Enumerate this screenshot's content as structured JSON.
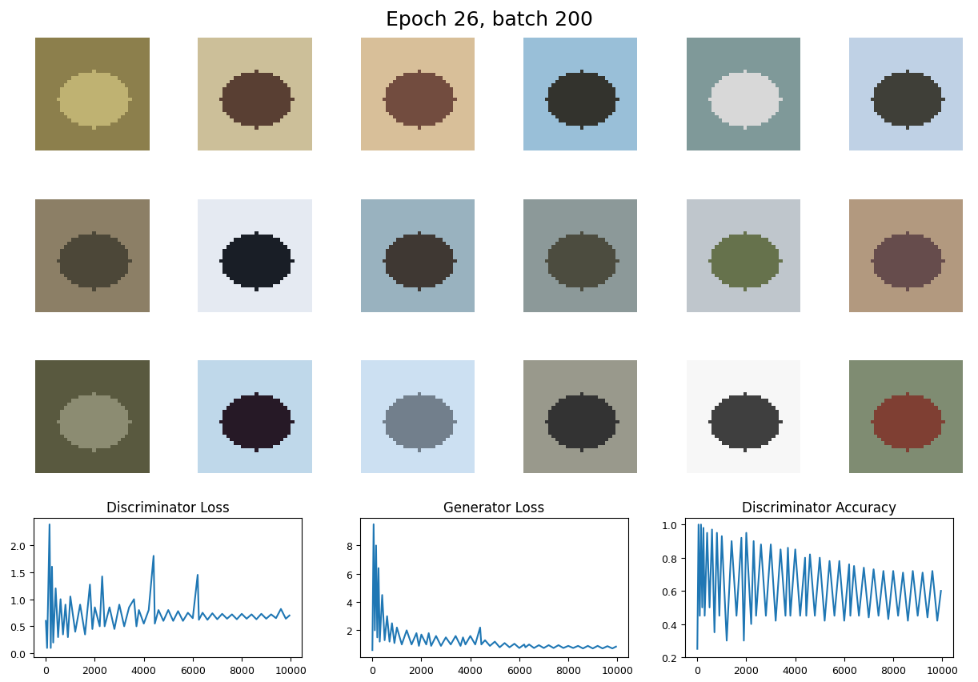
{
  "title": "Epoch 26, batch 200",
  "chart_data": [
    {
      "type": "line",
      "title": "Discriminator Loss",
      "color": "#1f77b4",
      "x": [
        0,
        50,
        100,
        150,
        200,
        250,
        300,
        400,
        500,
        600,
        700,
        800,
        900,
        1000,
        1200,
        1400,
        1600,
        1800,
        1900,
        2000,
        2200,
        2300,
        2400,
        2600,
        2800,
        3000,
        3200,
        3400,
        3600,
        3700,
        3800,
        4000,
        4200,
        4400,
        4450,
        4600,
        4800,
        5000,
        5200,
        5400,
        5600,
        5800,
        6000,
        6200,
        6250,
        6400,
        6600,
        6800,
        7000,
        7200,
        7400,
        7600,
        7800,
        8000,
        8200,
        8400,
        8600,
        8800,
        9000,
        9200,
        9400,
        9600,
        9800,
        9950
      ],
      "values": [
        0.6,
        0.1,
        1.2,
        2.38,
        0.1,
        1.6,
        0.2,
        1.2,
        0.3,
        1.0,
        0.35,
        0.9,
        0.3,
        1.05,
        0.4,
        0.9,
        0.35,
        1.27,
        0.45,
        0.85,
        0.5,
        1.42,
        0.5,
        0.85,
        0.45,
        0.9,
        0.5,
        0.85,
        1.0,
        0.5,
        0.8,
        0.55,
        0.8,
        1.8,
        0.55,
        0.8,
        0.6,
        0.8,
        0.6,
        0.78,
        0.6,
        0.75,
        0.65,
        1.45,
        0.62,
        0.75,
        0.62,
        0.74,
        0.63,
        0.73,
        0.64,
        0.72,
        0.63,
        0.73,
        0.64,
        0.72,
        0.63,
        0.73,
        0.64,
        0.72,
        0.65,
        0.82,
        0.64,
        0.7
      ],
      "xlim": [
        -500,
        10450
      ],
      "xticks": [
        0,
        2000,
        4000,
        6000,
        8000,
        10000
      ],
      "ylim": [
        -0.07,
        2.5
      ],
      "yticks": [
        0.0,
        0.5,
        1.0,
        1.5,
        2.0
      ]
    },
    {
      "type": "line",
      "title": "Generator Loss",
      "color": "#1f77b4",
      "x": [
        0,
        50,
        100,
        150,
        200,
        250,
        300,
        400,
        500,
        600,
        700,
        800,
        900,
        1000,
        1200,
        1400,
        1600,
        1800,
        1900,
        2000,
        2200,
        2300,
        2400,
        2600,
        2800,
        3000,
        3200,
        3400,
        3600,
        3700,
        3800,
        4000,
        4200,
        4400,
        4450,
        4600,
        4800,
        5000,
        5200,
        5400,
        5600,
        5800,
        6000,
        6200,
        6250,
        6400,
        6600,
        6800,
        7000,
        7200,
        7400,
        7600,
        7800,
        8000,
        8200,
        8400,
        8600,
        8800,
        9000,
        9200,
        9400,
        9600,
        9800,
        9950
      ],
      "values": [
        0.6,
        9.5,
        2.0,
        8.0,
        1.5,
        6.4,
        1.2,
        4.5,
        1.3,
        3.0,
        1.2,
        2.5,
        1.1,
        2.2,
        1.0,
        2.0,
        1.0,
        1.8,
        0.9,
        1.7,
        1.0,
        1.8,
        0.9,
        1.6,
        0.9,
        1.5,
        1.0,
        1.6,
        0.9,
        1.5,
        1.0,
        1.6,
        1.0,
        2.2,
        1.0,
        1.3,
        0.9,
        1.2,
        0.8,
        1.1,
        0.8,
        1.05,
        0.75,
        1.0,
        0.8,
        1.0,
        0.75,
        0.95,
        0.75,
        0.95,
        0.75,
        0.95,
        0.75,
        0.9,
        0.75,
        0.9,
        0.72,
        0.9,
        0.72,
        0.9,
        0.72,
        0.88,
        0.72,
        0.85
      ],
      "xlim": [
        -500,
        10450
      ],
      "xticks": [
        0,
        2000,
        4000,
        6000,
        8000,
        10000
      ],
      "ylim": [
        0.1,
        9.95
      ],
      "yticks": [
        2,
        4,
        6,
        8
      ]
    },
    {
      "type": "line",
      "title": "Discriminator Accuracy",
      "color": "#1f77b4",
      "x": [
        0,
        50,
        100,
        150,
        200,
        250,
        300,
        400,
        500,
        600,
        700,
        800,
        900,
        1000,
        1200,
        1400,
        1600,
        1800,
        1900,
        2000,
        2200,
        2300,
        2400,
        2600,
        2800,
        3000,
        3200,
        3400,
        3600,
        3700,
        3800,
        4000,
        4200,
        4400,
        4450,
        4600,
        4800,
        5000,
        5200,
        5400,
        5600,
        5800,
        6000,
        6200,
        6250,
        6400,
        6600,
        6800,
        7000,
        7200,
        7400,
        7600,
        7800,
        8000,
        8200,
        8400,
        8600,
        8800,
        9000,
        9200,
        9400,
        9600,
        9800,
        9950
      ],
      "values": [
        0.25,
        1.0,
        0.45,
        1.0,
        0.5,
        0.98,
        0.45,
        0.95,
        0.5,
        0.97,
        0.35,
        0.95,
        0.45,
        0.93,
        0.3,
        0.9,
        0.45,
        0.92,
        0.3,
        0.95,
        0.4,
        0.9,
        0.45,
        0.88,
        0.45,
        0.88,
        0.42,
        0.85,
        0.45,
        0.86,
        0.45,
        0.85,
        0.45,
        0.8,
        0.45,
        0.82,
        0.45,
        0.8,
        0.42,
        0.78,
        0.45,
        0.78,
        0.42,
        0.76,
        0.45,
        0.75,
        0.45,
        0.74,
        0.44,
        0.73,
        0.45,
        0.72,
        0.43,
        0.72,
        0.45,
        0.71,
        0.42,
        0.72,
        0.45,
        0.71,
        0.44,
        0.72,
        0.42,
        0.6
      ],
      "xlim": [
        -500,
        10450
      ],
      "xticks": [
        0,
        2000,
        4000,
        6000,
        8000,
        10000
      ],
      "ylim": [
        0.2,
        1.04
      ],
      "yticks": [
        0.2,
        0.4,
        0.6,
        0.8,
        1.0
      ]
    }
  ]
}
